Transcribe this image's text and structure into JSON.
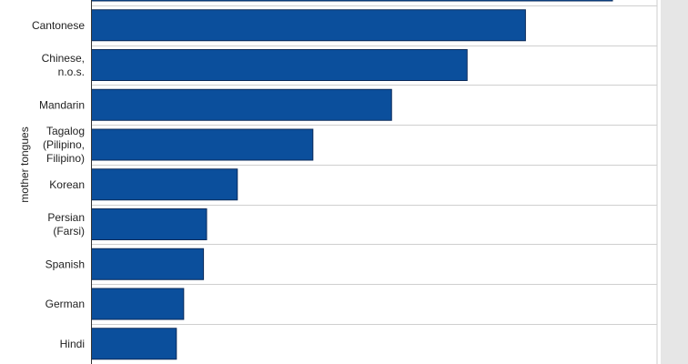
{
  "chart_data": {
    "type": "bar",
    "orientation": "horizontal",
    "ylabel": "mother tongues",
    "categories": [
      "",
      [
        "Cantonese"
      ],
      [
        "Chinese,",
        "n.o.s."
      ],
      [
        "Mandarin"
      ],
      [
        "Tagalog",
        "(Pilipino,",
        "Filipino)"
      ],
      [
        "Korean"
      ],
      [
        "Persian",
        "(Farsi)"
      ],
      [
        "Spanish"
      ],
      [
        "German"
      ],
      [
        "Hindi"
      ]
    ],
    "values": [
      100,
      83.3,
      72.1,
      57.6,
      42.5,
      28.0,
      22.1,
      21.5,
      17.7,
      16.3
    ],
    "xlim": [
      0,
      100
    ],
    "grid": true,
    "colors": {
      "bar": "#0b4f9c",
      "bar_edge": "#0a2a5a",
      "grid": "#cfcfcf",
      "frame": "#cccccc",
      "shadow": "#d9d9d9",
      "axis": "#333333"
    }
  }
}
